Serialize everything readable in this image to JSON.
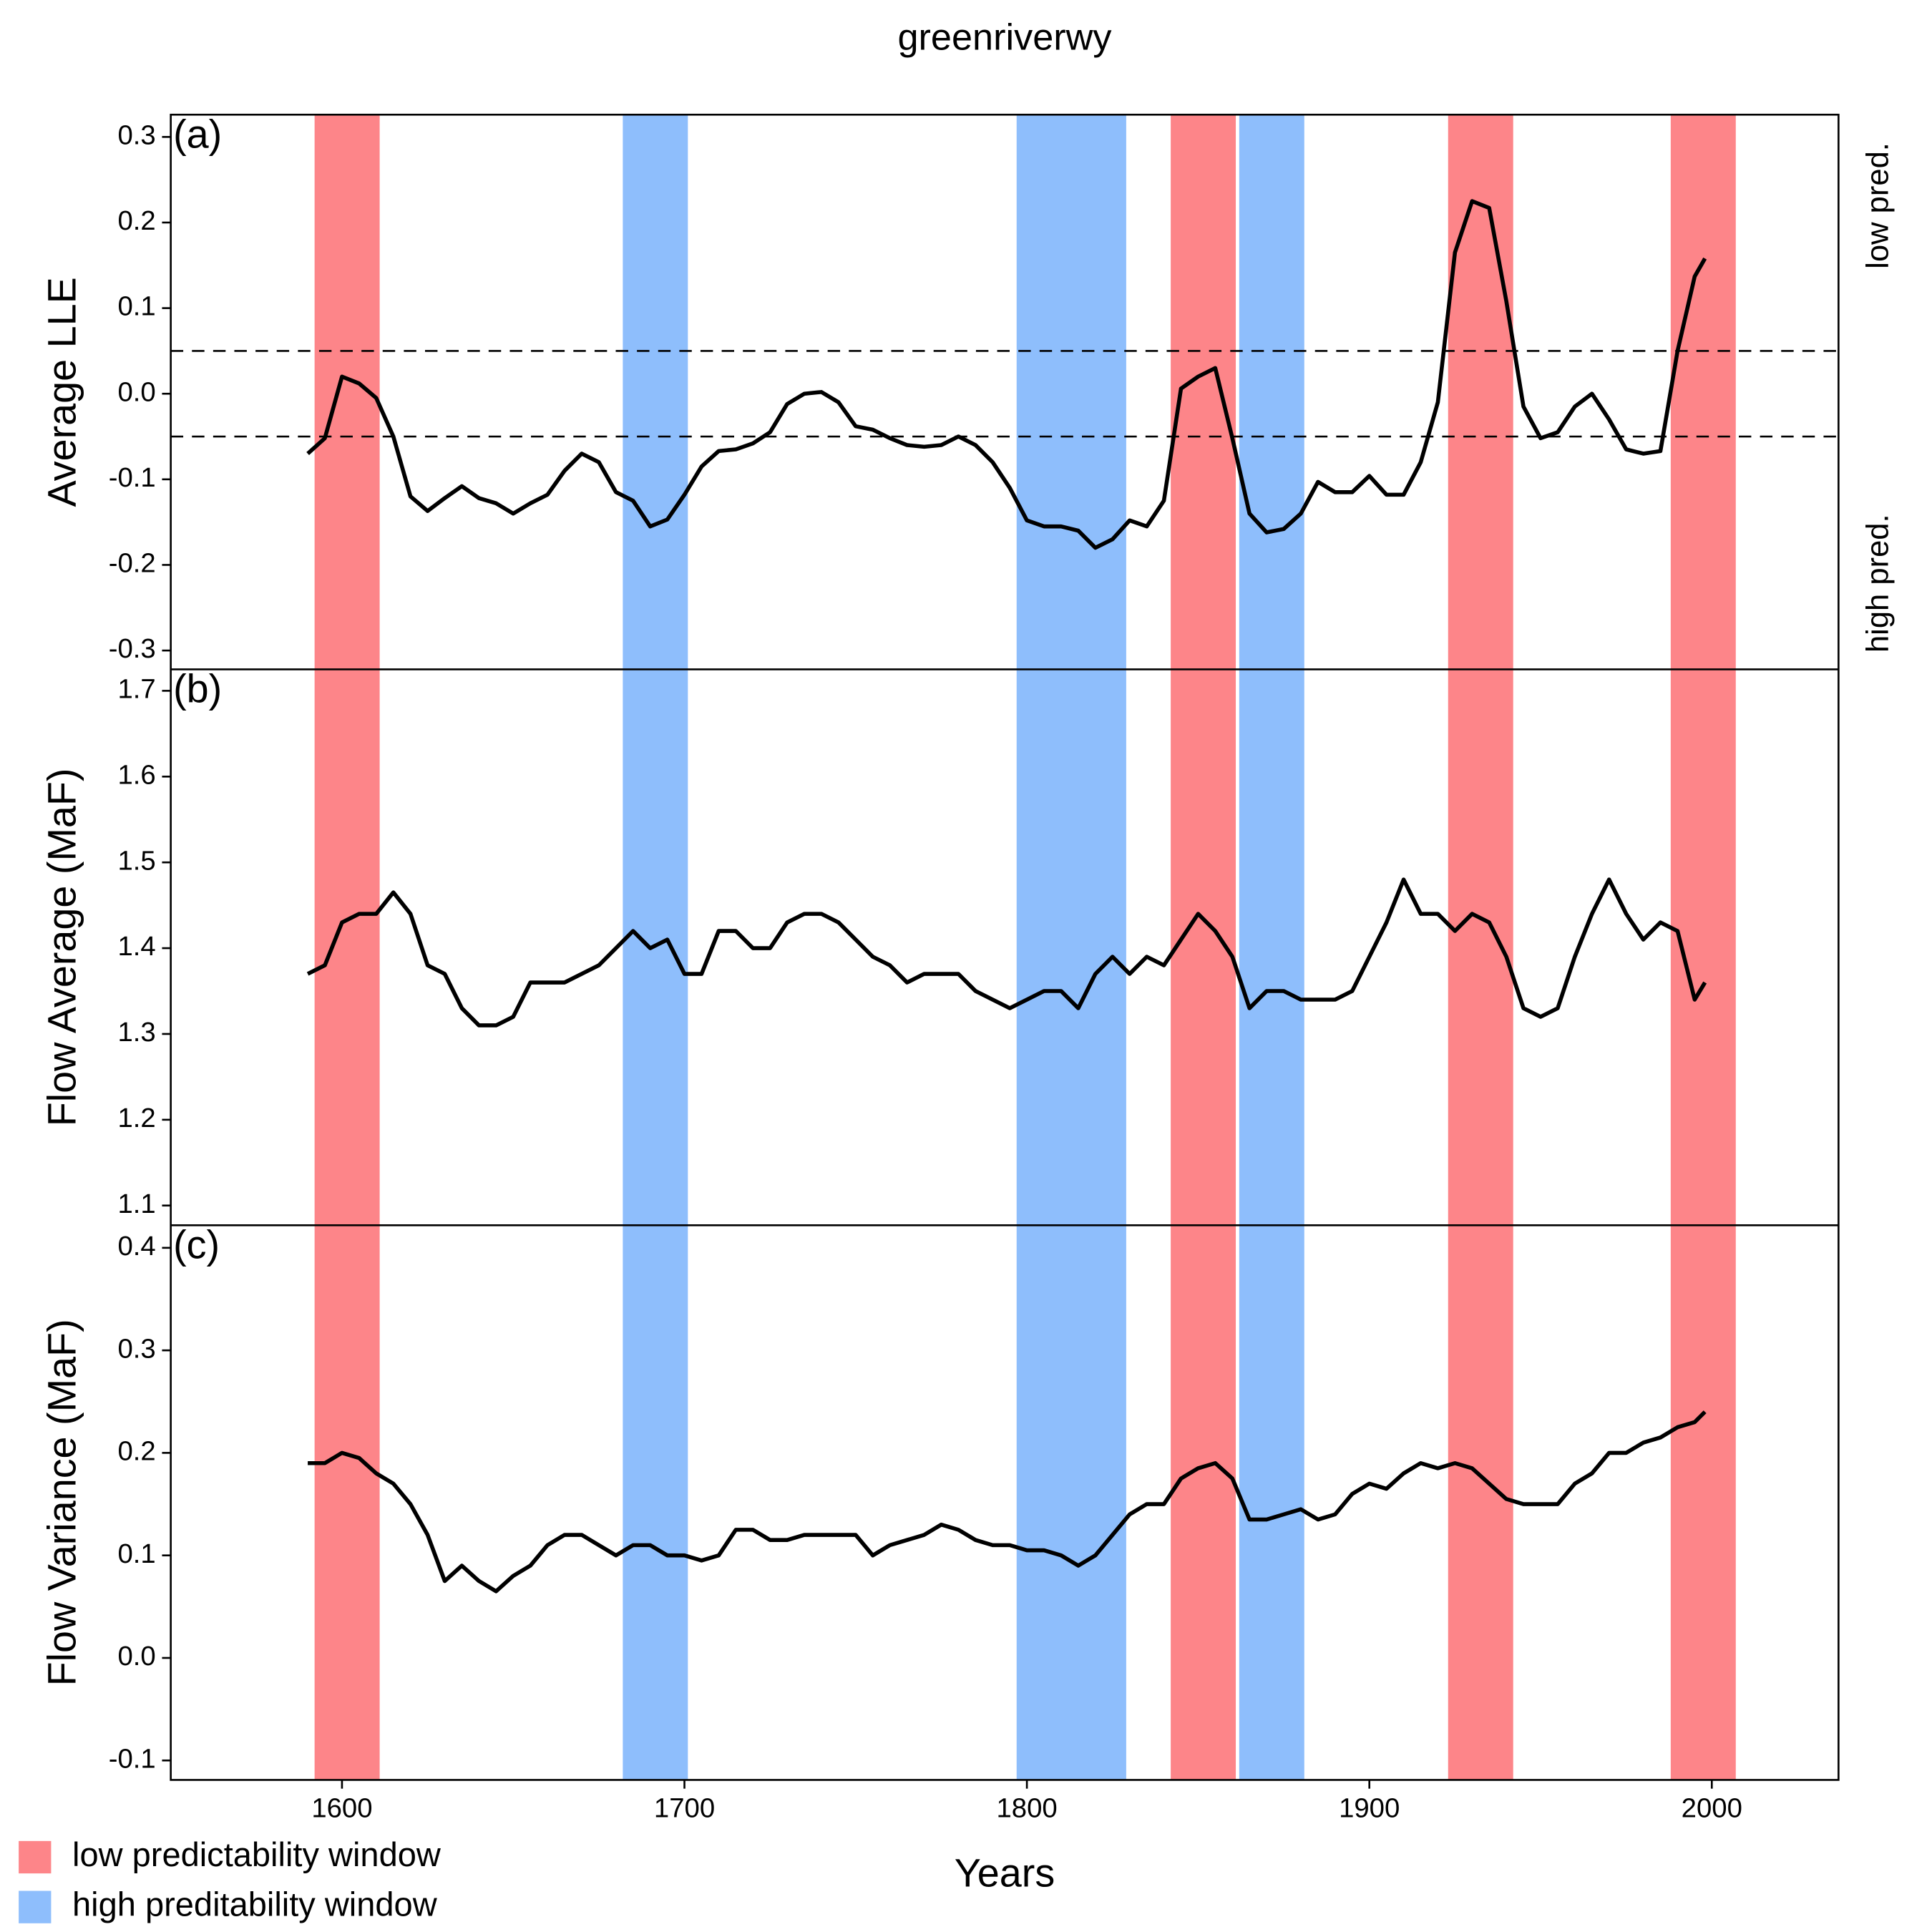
{
  "chart_data": {
    "type": "line",
    "title": "greenriverwy",
    "xlabel": "Years",
    "xlim": [
      1550,
      2037
    ],
    "xticks": [
      1600,
      1700,
      1800,
      1900,
      2000
    ],
    "windows": [
      {
        "name": "low predictability window",
        "color": "#fd8589",
        "ranges": [
          [
            1592,
            1611
          ],
          [
            1842,
            1861
          ],
          [
            1923,
            1942
          ],
          [
            1988,
            2007
          ]
        ]
      },
      {
        "name": "high preditability window",
        "color": "#8ebefc",
        "ranges": [
          [
            1682,
            1701
          ],
          [
            1797,
            1829
          ],
          [
            1862,
            1881
          ]
        ]
      }
    ],
    "side_labels": {
      "top": "low pred.",
      "bottom": "high pred."
    },
    "panels": [
      {
        "label": "(a)",
        "ylabel": "Average LLE",
        "ylim": [
          -0.322,
          0.326
        ],
        "yticks": [
          0.3,
          0.2,
          0.1,
          {
            "value": 0,
            "label": "0.0"
          },
          -0.1,
          -0.2,
          -0.3
        ],
        "hlines": [
          0.05,
          -0.05
        ],
        "color": "#000000",
        "x": [
          1590,
          1595,
          1600,
          1605,
          1610,
          1615,
          1620,
          1625,
          1630,
          1635,
          1640,
          1645,
          1650,
          1655,
          1660,
          1665,
          1670,
          1675,
          1680,
          1685,
          1690,
          1695,
          1700,
          1705,
          1710,
          1715,
          1720,
          1725,
          1730,
          1735,
          1740,
          1745,
          1750,
          1755,
          1760,
          1765,
          1770,
          1775,
          1780,
          1785,
          1790,
          1795,
          1800,
          1805,
          1810,
          1815,
          1820,
          1825,
          1830,
          1835,
          1840,
          1845,
          1850,
          1855,
          1860,
          1865,
          1870,
          1875,
          1880,
          1885,
          1890,
          1895,
          1900,
          1905,
          1910,
          1915,
          1920,
          1925,
          1930,
          1935,
          1940,
          1945,
          1950,
          1955,
          1960,
          1965,
          1970,
          1975,
          1980,
          1985,
          1990,
          1995,
          1998
        ],
        "values": [
          -0.07,
          -0.052,
          0.02,
          0.012,
          -0.005,
          -0.05,
          -0.12,
          -0.137,
          -0.122,
          -0.108,
          -0.122,
          -0.128,
          -0.14,
          -0.128,
          -0.118,
          -0.09,
          -0.07,
          -0.08,
          -0.115,
          -0.125,
          -0.155,
          -0.147,
          -0.118,
          -0.085,
          -0.067,
          -0.065,
          -0.058,
          -0.045,
          -0.012,
          0.0,
          0.002,
          -0.01,
          -0.038,
          -0.042,
          -0.052,
          -0.06,
          -0.062,
          -0.06,
          -0.05,
          -0.06,
          -0.08,
          -0.11,
          -0.148,
          -0.155,
          -0.155,
          -0.16,
          -0.18,
          -0.17,
          -0.148,
          -0.155,
          -0.125,
          0.006,
          0.02,
          0.03,
          -0.052,
          -0.14,
          -0.162,
          -0.158,
          -0.14,
          -0.103,
          -0.115,
          -0.115,
          -0.096,
          -0.118,
          -0.118,
          -0.08,
          -0.01,
          0.165,
          0.225,
          0.217,
          0.108,
          -0.015,
          -0.052,
          -0.045,
          -0.015,
          0.0,
          -0.03,
          -0.065,
          -0.07,
          -0.067,
          0.05,
          0.137,
          0.158
        ]
      },
      {
        "label": "(b)",
        "ylabel": "Flow Average (MaF)",
        "ylim": [
          1.077,
          1.725
        ],
        "yticks": [
          1.7,
          1.6,
          1.5,
          1.4,
          1.3,
          1.2,
          1.1
        ],
        "color": "#000000",
        "x": [
          1590,
          1595,
          1600,
          1605,
          1610,
          1615,
          1620,
          1625,
          1630,
          1635,
          1640,
          1645,
          1650,
          1655,
          1660,
          1665,
          1670,
          1675,
          1680,
          1685,
          1690,
          1695,
          1700,
          1705,
          1710,
          1715,
          1720,
          1725,
          1730,
          1735,
          1740,
          1745,
          1750,
          1755,
          1760,
          1765,
          1770,
          1775,
          1780,
          1785,
          1790,
          1795,
          1800,
          1805,
          1810,
          1815,
          1820,
          1825,
          1830,
          1835,
          1840,
          1845,
          1850,
          1855,
          1860,
          1865,
          1870,
          1875,
          1880,
          1885,
          1890,
          1895,
          1900,
          1905,
          1910,
          1915,
          1920,
          1925,
          1930,
          1935,
          1940,
          1945,
          1950,
          1955,
          1960,
          1965,
          1970,
          1975,
          1980,
          1985,
          1990,
          1995,
          1998
        ],
        "values": [
          1.37,
          1.38,
          1.43,
          1.44,
          1.44,
          1.465,
          1.44,
          1.38,
          1.37,
          1.33,
          1.31,
          1.31,
          1.32,
          1.36,
          1.36,
          1.36,
          1.37,
          1.38,
          1.4,
          1.42,
          1.4,
          1.41,
          1.37,
          1.37,
          1.42,
          1.42,
          1.4,
          1.4,
          1.43,
          1.44,
          1.44,
          1.43,
          1.41,
          1.39,
          1.38,
          1.36,
          1.37,
          1.37,
          1.37,
          1.35,
          1.34,
          1.33,
          1.34,
          1.35,
          1.35,
          1.33,
          1.37,
          1.39,
          1.37,
          1.39,
          1.38,
          1.41,
          1.44,
          1.42,
          1.39,
          1.33,
          1.35,
          1.35,
          1.34,
          1.34,
          1.34,
          1.35,
          1.39,
          1.43,
          1.48,
          1.44,
          1.44,
          1.42,
          1.44,
          1.43,
          1.39,
          1.33,
          1.32,
          1.33,
          1.39,
          1.44,
          1.48,
          1.44,
          1.41,
          1.43,
          1.42,
          1.34,
          1.36
        ]
      },
      {
        "label": "(c)",
        "ylabel": "Flow Variance (MaF)",
        "ylim": [
          -0.119,
          0.422
        ],
        "yticks": [
          0.4,
          0.3,
          0.2,
          0.1,
          {
            "value": 0,
            "label": "0.0"
          },
          -0.1
        ],
        "color": "#000000",
        "x": [
          1590,
          1595,
          1600,
          1605,
          1610,
          1615,
          1620,
          1625,
          1630,
          1635,
          1640,
          1645,
          1650,
          1655,
          1660,
          1665,
          1670,
          1675,
          1680,
          1685,
          1690,
          1695,
          1700,
          1705,
          1710,
          1715,
          1720,
          1725,
          1730,
          1735,
          1740,
          1745,
          1750,
          1755,
          1760,
          1765,
          1770,
          1775,
          1780,
          1785,
          1790,
          1795,
          1800,
          1805,
          1810,
          1815,
          1820,
          1825,
          1830,
          1835,
          1840,
          1845,
          1850,
          1855,
          1860,
          1865,
          1870,
          1875,
          1880,
          1885,
          1890,
          1895,
          1900,
          1905,
          1910,
          1915,
          1920,
          1925,
          1930,
          1935,
          1940,
          1945,
          1950,
          1955,
          1960,
          1965,
          1970,
          1975,
          1980,
          1985,
          1990,
          1995,
          1998
        ],
        "values": [
          0.19,
          0.19,
          0.2,
          0.195,
          0.18,
          0.17,
          0.15,
          0.12,
          0.075,
          0.09,
          0.075,
          0.065,
          0.08,
          0.09,
          0.11,
          0.12,
          0.12,
          0.11,
          0.1,
          0.11,
          0.11,
          0.1,
          0.1,
          0.095,
          0.1,
          0.125,
          0.125,
          0.115,
          0.115,
          0.12,
          0.12,
          0.12,
          0.12,
          0.1,
          0.11,
          0.115,
          0.12,
          0.13,
          0.125,
          0.115,
          0.11,
          0.11,
          0.105,
          0.105,
          0.1,
          0.09,
          0.1,
          0.12,
          0.14,
          0.15,
          0.15,
          0.175,
          0.185,
          0.19,
          0.175,
          0.135,
          0.135,
          0.14,
          0.145,
          0.135,
          0.14,
          0.16,
          0.17,
          0.165,
          0.18,
          0.19,
          0.185,
          0.19,
          0.185,
          0.17,
          0.155,
          0.15,
          0.15,
          0.15,
          0.17,
          0.18,
          0.2,
          0.2,
          0.21,
          0.215,
          0.225,
          0.23,
          0.24
        ]
      }
    ]
  }
}
